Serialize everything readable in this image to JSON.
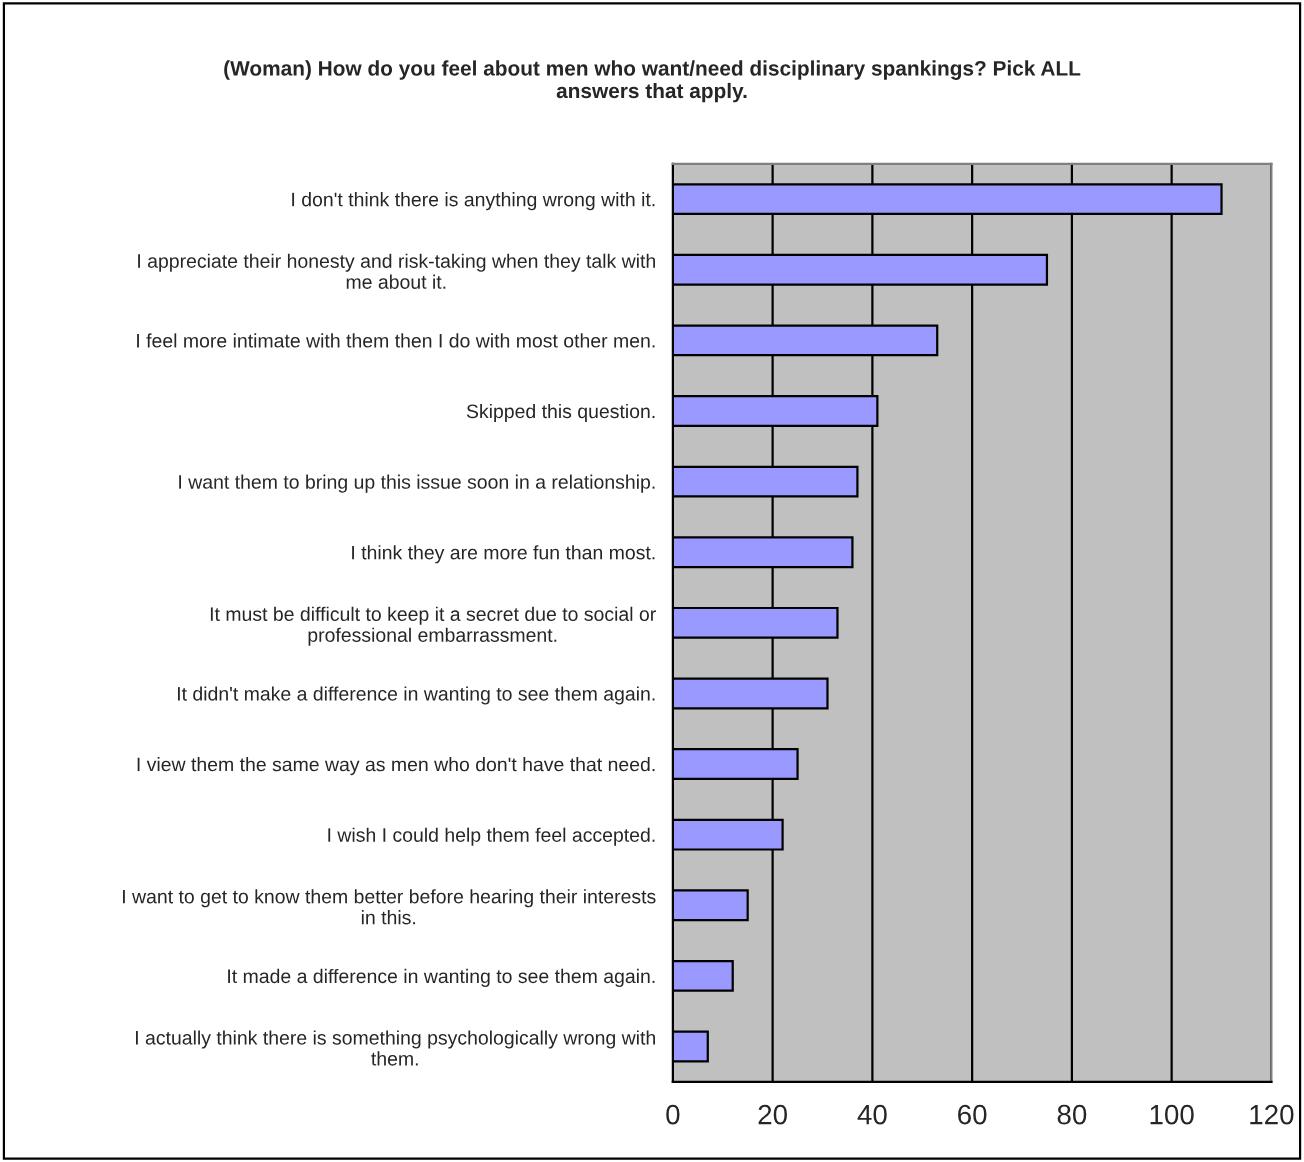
{
  "chart_data": {
    "type": "bar",
    "orientation": "horizontal",
    "title": "(Woman) How do you feel about men who want/need disciplinary spankings? Pick ALL\nanswers that apply.",
    "categories": [
      "I don't think there is anything wrong with it.",
      "I appreciate their honesty and risk-taking when they talk with\nme about it.",
      "I feel more intimate with them then I do with most other men.",
      "Skipped this question.",
      "I want them to bring up this issue soon in a relationship.",
      "I think they are more fun than most.",
      "It must be difficult to keep it a secret due to social or\nprofessional embarrassment.",
      "It didn't make a difference in wanting to see them again.",
      "I view them the same way as men who don't have that need.",
      "I wish I could help them feel accepted.",
      "I want to get to know them better before hearing their interests\nin this.",
      "It made a difference in wanting to see them again.",
      "I actually think there is something psychologically wrong with\nthem."
    ],
    "values": [
      110,
      75,
      53,
      41,
      37,
      36,
      33,
      31,
      25,
      22,
      15,
      12,
      7
    ],
    "color": "#9999ff",
    "xlim": [
      0,
      120
    ],
    "xticks": [
      0,
      20,
      40,
      60,
      80,
      100,
      120
    ],
    "grid": "x",
    "legend": false
  }
}
